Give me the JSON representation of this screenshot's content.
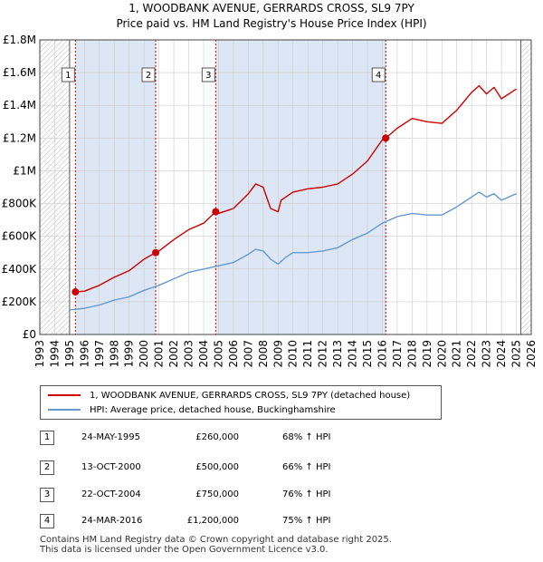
{
  "title_line1": "1, WOODBANK AVENUE, GERRARDS CROSS, SL9 7PY",
  "title_line2": "Price paid vs. HM Land Registry's House Price Index (HPI)",
  "legend": {
    "property_label": "1, WOODBANK AVENUE, GERRARDS CROSS, SL9 7PY (detached house)",
    "hpi_label": "HPI: Average price, detached house, Buckinghamshire"
  },
  "transactions": [
    {
      "num": "1",
      "date": "24-MAY-1995",
      "price": "£260,000",
      "hpi": "68% ↑ HPI"
    },
    {
      "num": "2",
      "date": "13-OCT-2000",
      "price": "£500,000",
      "hpi": "66% ↑ HPI"
    },
    {
      "num": "3",
      "date": "22-OCT-2004",
      "price": "£750,000",
      "hpi": "76% ↑ HPI"
    },
    {
      "num": "4",
      "date": "24-MAR-2016",
      "price": "£1,200,000",
      "hpi": "75% ↑ HPI"
    }
  ],
  "footer": {
    "line1": "Contains HM Land Registry data © Crown copyright and database right 2025.",
    "line2": "This data is licensed under the Open Government Licence v3.0."
  },
  "colors": {
    "property": "#cc0000",
    "hpi": "#6699cc",
    "shade": "#dde6f4",
    "grid": "#cccccc"
  },
  "chart_data": {
    "type": "line",
    "xlim": [
      1993,
      2026
    ],
    "ylim": [
      0,
      1800000
    ],
    "x_ticks": [
      1993,
      1994,
      1995,
      1996,
      1997,
      1998,
      1999,
      2000,
      2001,
      2002,
      2003,
      2004,
      2005,
      2006,
      2007,
      2008,
      2009,
      2010,
      2011,
      2012,
      2013,
      2014,
      2015,
      2016,
      2017,
      2018,
      2019,
      2020,
      2021,
      2022,
      2023,
      2024,
      2025,
      2026
    ],
    "y_ticks": [
      0,
      200000,
      400000,
      600000,
      800000,
      1000000,
      1200000,
      1400000,
      1600000,
      1800000
    ],
    "y_tick_labels": [
      "£0",
      "£200K",
      "£400K",
      "£600K",
      "£800K",
      "£1M",
      "£1.2M",
      "£1.4M",
      "£1.6M",
      "£1.8M"
    ],
    "data_range": [
      1995.0,
      2025.3
    ],
    "sale_markers": [
      {
        "label": "1",
        "x": 1995.39,
        "y": 260000
      },
      {
        "label": "2",
        "x": 2000.78,
        "y": 500000
      },
      {
        "label": "3",
        "x": 2004.81,
        "y": 750000
      },
      {
        "label": "4",
        "x": 2016.23,
        "y": 1200000
      }
    ],
    "series": [
      {
        "name": "1, WOODBANK AVENUE, GERRARDS CROSS, SL9 7PY (detached house)",
        "x": [
          1995.39,
          1996,
          1997,
          1998,
          1999,
          2000,
          2000.78,
          2001,
          2002,
          2003,
          2004,
          2004.81,
          2005,
          2006,
          2007,
          2007.5,
          2008,
          2008.5,
          2009,
          2009.2,
          2010,
          2011,
          2012,
          2013,
          2014,
          2015,
          2016,
          2016.23,
          2017,
          2018,
          2019,
          2020,
          2021,
          2022,
          2022.5,
          2023,
          2023.5,
          2024,
          2025
        ],
        "y": [
          260000,
          265000,
          300000,
          350000,
          390000,
          460000,
          500000,
          510000,
          580000,
          640000,
          680000,
          750000,
          740000,
          770000,
          860000,
          920000,
          900000,
          770000,
          750000,
          820000,
          870000,
          890000,
          900000,
          920000,
          980000,
          1060000,
          1190000,
          1200000,
          1260000,
          1320000,
          1300000,
          1290000,
          1370000,
          1480000,
          1520000,
          1470000,
          1510000,
          1440000,
          1500000
        ]
      },
      {
        "name": "HPI: Average price, detached house, Buckinghamshire",
        "x": [
          1995.0,
          1996,
          1997,
          1998,
          1999,
          2000,
          2001,
          2002,
          2003,
          2004,
          2005,
          2006,
          2007,
          2007.5,
          2008,
          2008.5,
          2009,
          2009.5,
          2010,
          2011,
          2012,
          2013,
          2014,
          2015,
          2016,
          2017,
          2018,
          2019,
          2020,
          2021,
          2022,
          2022.5,
          2023,
          2023.5,
          2024,
          2025
        ],
        "y": [
          150000,
          160000,
          180000,
          210000,
          230000,
          270000,
          300000,
          340000,
          380000,
          400000,
          420000,
          440000,
          490000,
          520000,
          510000,
          460000,
          430000,
          470000,
          500000,
          500000,
          510000,
          530000,
          580000,
          620000,
          680000,
          720000,
          740000,
          730000,
          730000,
          780000,
          840000,
          870000,
          840000,
          860000,
          820000,
          860000
        ]
      }
    ]
  }
}
